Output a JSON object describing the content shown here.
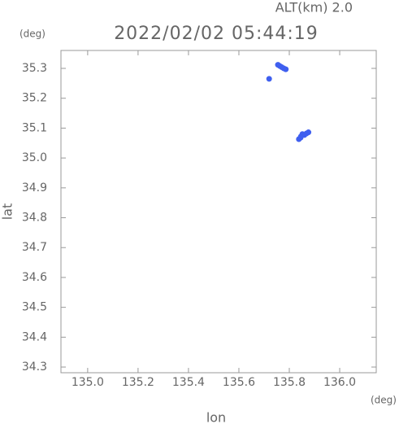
{
  "chart_data": {
    "type": "scatter",
    "title": "2022/02/02 05:44:19",
    "subtitle": "ALT(km) 2.0",
    "y_unit": "(deg)",
    "x_unit": "(deg)",
    "xlabel": "lon",
    "ylabel": "lat",
    "xlim": [
      134.894,
      136.145
    ],
    "ylim": [
      34.281,
      35.36
    ],
    "xticks": [
      {
        "value": 135.0,
        "label": "135.0"
      },
      {
        "value": 135.2,
        "label": "135.2"
      },
      {
        "value": 135.4,
        "label": "135.4"
      },
      {
        "value": 135.6,
        "label": "135.6"
      },
      {
        "value": 135.8,
        "label": "135.8"
      },
      {
        "value": 136.0,
        "label": "136.0"
      }
    ],
    "yticks": [
      {
        "value": 34.3,
        "label": "34.3"
      },
      {
        "value": 34.4,
        "label": "34.4"
      },
      {
        "value": 34.5,
        "label": "34.5"
      },
      {
        "value": 34.6,
        "label": "34.6"
      },
      {
        "value": 34.7,
        "label": "34.7"
      },
      {
        "value": 34.8,
        "label": "34.8"
      },
      {
        "value": 34.9,
        "label": "34.9"
      },
      {
        "value": 35.0,
        "label": "35.0"
      },
      {
        "value": 35.1,
        "label": "35.1"
      },
      {
        "value": 35.2,
        "label": "35.2"
      },
      {
        "value": 35.3,
        "label": "35.3"
      }
    ],
    "series": [
      {
        "color": "#3f5fef",
        "x": [
          135.755,
          135.762,
          135.77,
          135.778,
          135.786,
          135.72,
          135.838,
          135.846,
          135.852,
          135.86,
          135.868,
          135.876,
          135.845
        ],
        "values": [
          35.312,
          35.308,
          35.304,
          35.3,
          35.297,
          35.265,
          35.063,
          35.072,
          35.08,
          35.077,
          35.082,
          35.086,
          35.068
        ]
      }
    ]
  }
}
